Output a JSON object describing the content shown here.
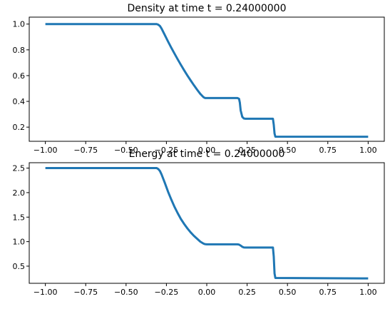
{
  "colors": {
    "line": "#1f77b4"
  },
  "chart_data": [
    {
      "type": "line",
      "title": "Density at time t =      0.24000000",
      "xlim": [
        -1.1,
        1.1
      ],
      "ylim": [
        0.09,
        1.054
      ],
      "xticks": [
        -1.0,
        -0.75,
        -0.5,
        -0.25,
        0.0,
        0.25,
        0.5,
        0.75,
        1.0
      ],
      "xtick_labels": [
        "−1.00",
        "−0.75",
        "−0.50",
        "−0.25",
        "0.00",
        "0.25",
        "0.50",
        "0.75",
        "1.00"
      ],
      "yticks": [
        0.2,
        0.4,
        0.6,
        0.8,
        1.0
      ],
      "ytick_labels": [
        "0.2",
        "0.4",
        "0.6",
        "0.8",
        "1.0"
      ],
      "grid": false,
      "series": [
        {
          "x": [
            -1.0,
            -0.31,
            -0.3,
            -0.29,
            -0.28,
            -0.26,
            -0.24,
            -0.22,
            -0.2,
            -0.18,
            -0.16,
            -0.14,
            -0.12,
            -0.1,
            -0.08,
            -0.06,
            -0.04,
            -0.02,
            -0.01,
            0.0,
            0.01,
            0.19,
            0.2,
            0.205,
            0.21,
            0.22,
            0.23,
            0.24,
            0.41,
            0.415,
            0.42,
            0.425,
            1.0
          ],
          "y": [
            1.0,
            1.0,
            0.995,
            0.985,
            0.965,
            0.915,
            0.865,
            0.817,
            0.771,
            0.726,
            0.683,
            0.641,
            0.601,
            0.563,
            0.526,
            0.491,
            0.458,
            0.432,
            0.426,
            0.426,
            0.426,
            0.426,
            0.42,
            0.39,
            0.33,
            0.28,
            0.267,
            0.265,
            0.265,
            0.22,
            0.15,
            0.126,
            0.125
          ]
        }
      ]
    },
    {
      "type": "line",
      "title": "Energy at time t =      0.24000000",
      "xlim": [
        -1.1,
        1.1
      ],
      "ylim": [
        0.15,
        2.61
      ],
      "xticks": [
        -1.0,
        -0.75,
        -0.5,
        -0.25,
        0.0,
        0.25,
        0.5,
        0.75,
        1.0
      ],
      "xtick_labels": [
        "−1.00",
        "−0.75",
        "−0.50",
        "−0.25",
        "0.00",
        "0.25",
        "0.50",
        "0.75",
        "1.00"
      ],
      "yticks": [
        0.5,
        1.0,
        1.5,
        2.0,
        2.5
      ],
      "ytick_labels": [
        "0.5",
        "1.0",
        "1.5",
        "2.0",
        "2.5"
      ],
      "grid": false,
      "series": [
        {
          "x": [
            -1.0,
            -0.31,
            -0.3,
            -0.29,
            -0.28,
            -0.26,
            -0.24,
            -0.22,
            -0.2,
            -0.18,
            -0.16,
            -0.14,
            -0.12,
            -0.1,
            -0.08,
            -0.06,
            -0.04,
            -0.02,
            -0.01,
            0.0,
            0.01,
            0.19,
            0.2,
            0.21,
            0.22,
            0.23,
            0.24,
            0.41,
            0.415,
            0.42,
            0.425,
            1.0
          ],
          "y": [
            2.5,
            2.5,
            2.48,
            2.44,
            2.37,
            2.2,
            2.02,
            1.86,
            1.71,
            1.58,
            1.46,
            1.36,
            1.27,
            1.19,
            1.12,
            1.06,
            1.0,
            0.96,
            0.948,
            0.945,
            0.945,
            0.945,
            0.94,
            0.92,
            0.895,
            0.882,
            0.88,
            0.88,
            0.7,
            0.35,
            0.26,
            0.25
          ]
        }
      ]
    }
  ]
}
